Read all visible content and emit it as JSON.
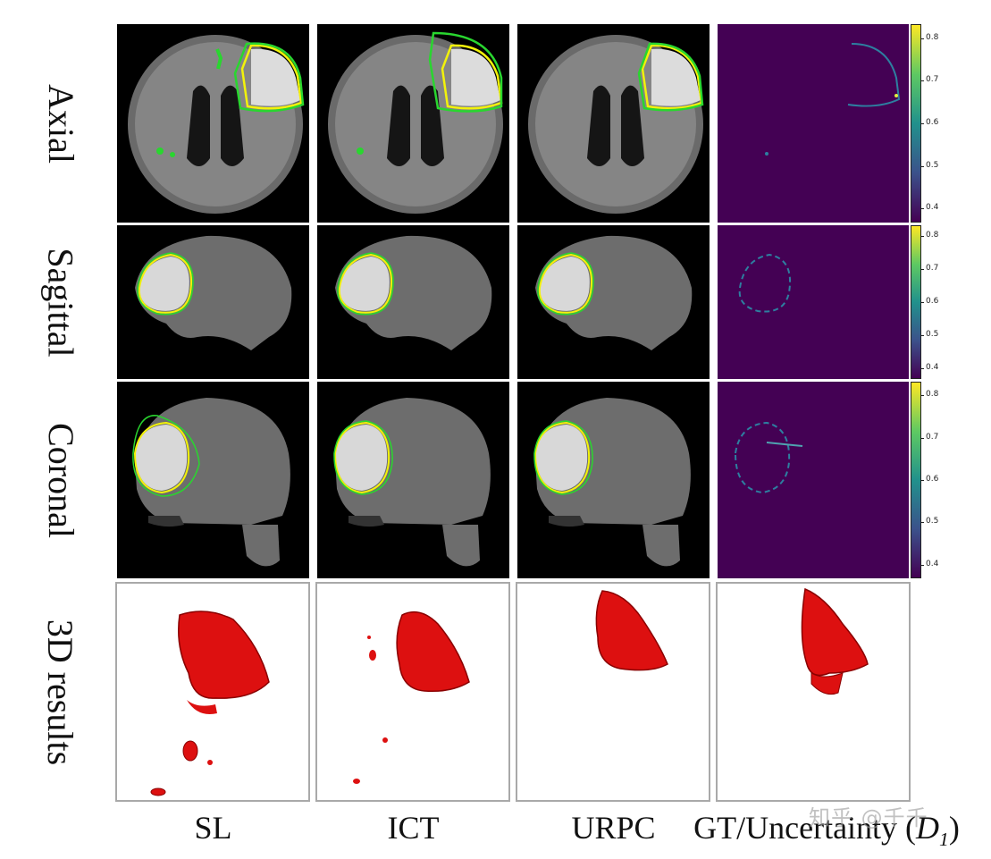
{
  "figure": {
    "rows": [
      "Axial",
      "Sagittal",
      "Coronal",
      "3D results"
    ],
    "columns": [
      "SL",
      "ICT",
      "URPC"
    ],
    "last_column_prefix": "GT/Uncertainty (",
    "last_column_symbol": "D",
    "last_column_subscript": "1",
    "last_column_suffix": ")",
    "colorbar_ticks": {
      "axial": [
        "0.8",
        "0.7",
        "0.6",
        "0.5",
        "0.4"
      ],
      "sagittal": [
        "0.8",
        "0.7",
        "0.6",
        "0.5",
        "0.4"
      ],
      "coronal": [
        "0.8",
        "0.7",
        "0.6",
        "0.5",
        "0.4"
      ]
    },
    "colors": {
      "prediction_contour": "#29d62f",
      "ground_truth_contour": "#f2f20a",
      "uncertainty_background": "#440154",
      "surface": "#dd1010"
    },
    "watermark": "知乎 @千千"
  }
}
